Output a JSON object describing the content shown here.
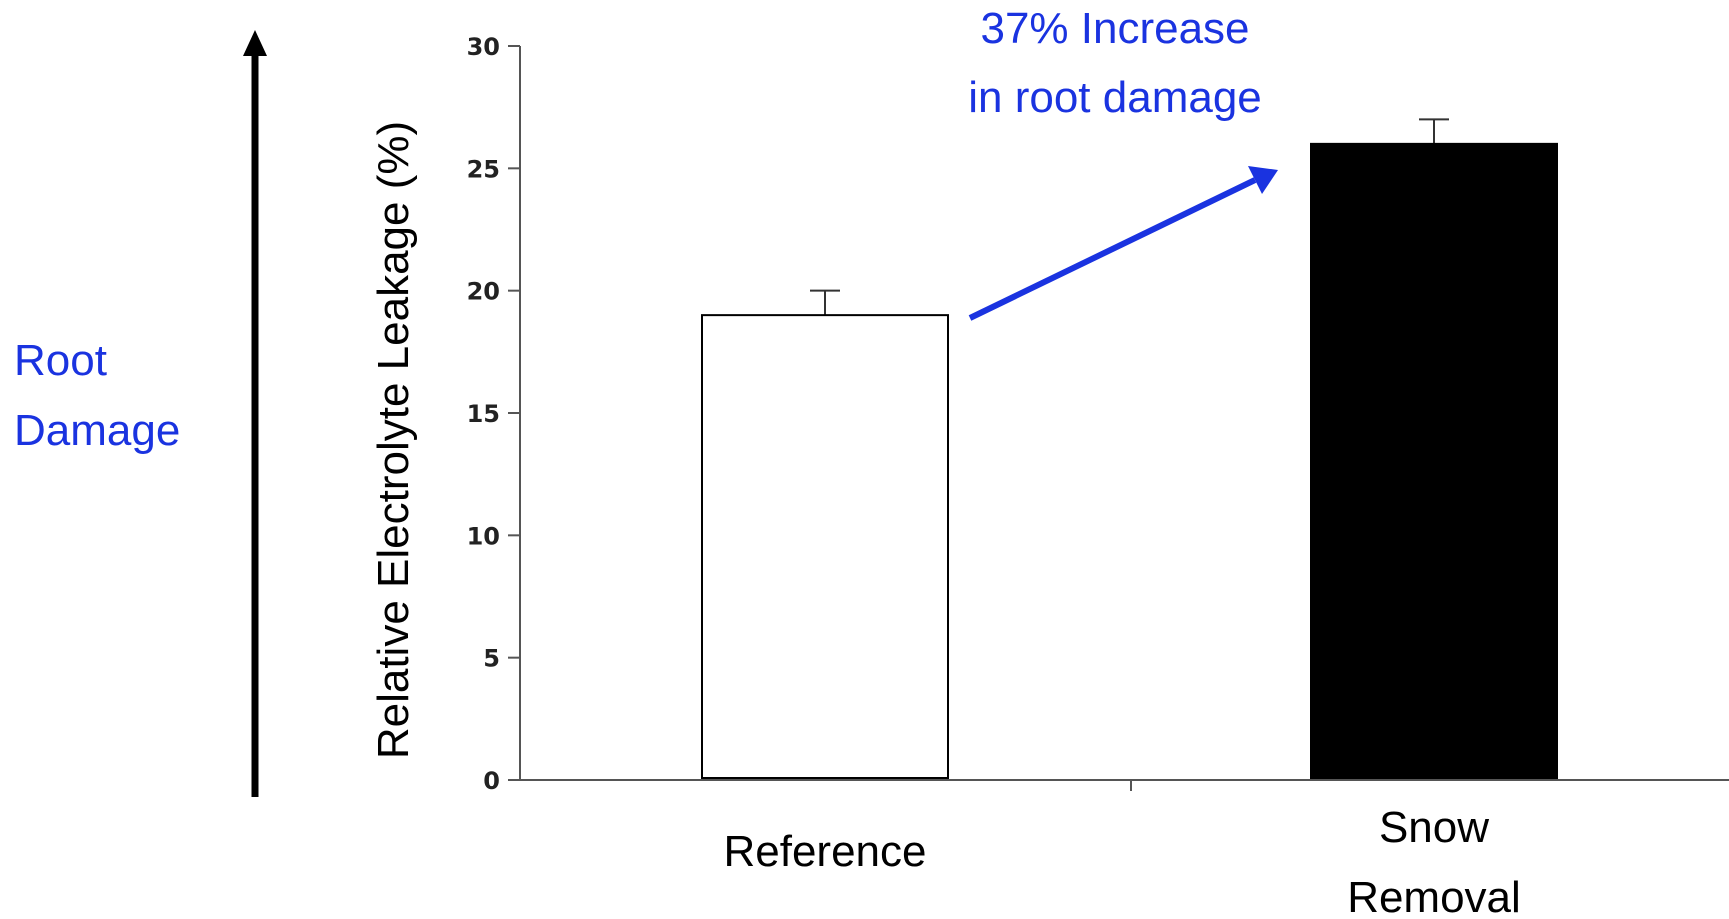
{
  "chart_data": {
    "type": "bar",
    "categories": [
      "Reference",
      "Snow\nRemoval"
    ],
    "values": [
      19,
      26
    ],
    "errors": [
      1,
      1
    ],
    "bar_fills": [
      "#ffffff",
      "#000000"
    ],
    "ylabel": "Relative Electrolyte Leakage (%)",
    "ylim": [
      0,
      30
    ],
    "yticks": [
      0,
      5,
      10,
      15,
      20,
      25,
      30
    ],
    "grid": false,
    "annotation": {
      "lines": [
        "37% Increase",
        "in root damage"
      ],
      "color": "#1a33e0"
    },
    "side_label": {
      "lines": [
        "Root",
        "Damage"
      ],
      "color": "#1a33e0"
    }
  }
}
